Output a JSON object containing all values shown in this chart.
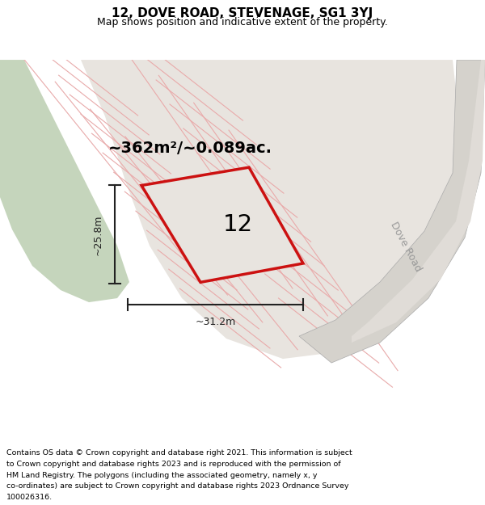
{
  "title": "12, DOVE ROAD, STEVENAGE, SG1 3YJ",
  "subtitle": "Map shows position and indicative extent of the property.",
  "area_text": "~362m²/~0.089ac.",
  "property_number": "12",
  "dim_width": "~31.2m",
  "dim_height": "~25.8m",
  "road_label": "Dove Road",
  "footer_lines": [
    "Contains OS data © Crown copyright and database right 2021. This information is subject",
    "to Crown copyright and database rights 2023 and is reproduced with the permission of",
    "HM Land Registry. The polygons (including the associated geometry, namely x, y",
    "co-ordinates) are subject to Crown copyright and database rights 2023 Ordnance Survey",
    "100026316."
  ],
  "map_bg": "#f0eeeb",
  "green_color": "#c5d5bc",
  "road_fill": "#dedad5",
  "dove_road_fill": "#d5d2cc",
  "plot_fill": "#e8e4df",
  "red_color": "#cc1111",
  "pink_line": "#e8aaaa",
  "gray_line": "#aaaaaa",
  "dim_color": "#222222",
  "title_fontsize": 11,
  "subtitle_fontsize": 9,
  "area_fontsize": 14,
  "number_fontsize": 20,
  "footer_fontsize": 6.8,
  "road_label_color": "#999999"
}
